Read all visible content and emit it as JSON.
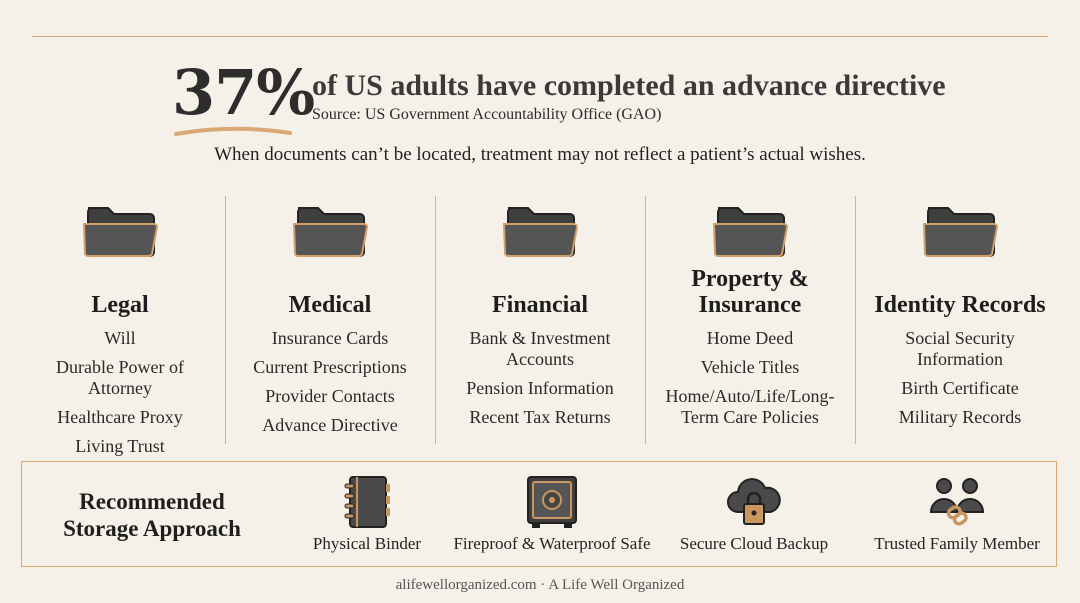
{
  "headline": {
    "stat": "37%",
    "text": "of US adults have completed an advance directive",
    "source": "Source: US Government Accountability Office (GAO)"
  },
  "subtitle": "When documents can’t be located, treatment may not reflect a patient’s actual wishes.",
  "categories": [
    {
      "title": "Legal",
      "icon": "folder-icon",
      "items": [
        "Will",
        "Durable Power of Attorney",
        "Healthcare Proxy",
        "Living Trust"
      ]
    },
    {
      "title": "Medical",
      "icon": "folder-icon",
      "items": [
        "Insurance Cards",
        "Current Prescriptions",
        "Provider Contacts",
        "Advance Directive"
      ]
    },
    {
      "title": "Financial",
      "icon": "folder-icon",
      "items": [
        "Bank & Investment Accounts",
        "Pension Information",
        "Recent Tax Returns"
      ]
    },
    {
      "title": "Property & Insurance",
      "icon": "folder-icon",
      "items": [
        "Home Deed",
        "Vehicle Titles",
        "Home/Auto/Life/Long-Term Care Policies"
      ]
    },
    {
      "title": "Identity Records",
      "icon": "folder-icon",
      "items": [
        "Social Security Information",
        "Birth Certificate",
        "Military Records"
      ]
    }
  ],
  "storage": {
    "title": "Recommended Storage Approach",
    "options": [
      {
        "label": "Physical Binder",
        "icon": "binder-icon"
      },
      {
        "label": "Fireproof & Waterproof Safe",
        "icon": "safe-icon"
      },
      {
        "label": "Secure Cloud Backup",
        "icon": "cloud-lock-icon"
      },
      {
        "label": "Trusted Family Member",
        "icon": "family-link-icon"
      }
    ]
  },
  "footer": "alifewellorganized.com · A Life Well Organized",
  "colors": {
    "background": "#f5f1e8",
    "accent": "#d9a874",
    "icon_fill": "#4a4a4a",
    "icon_edge": "#c9965f"
  }
}
